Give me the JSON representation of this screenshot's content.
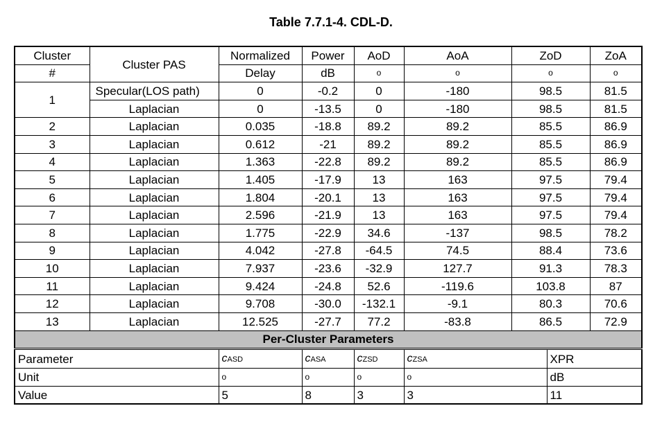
{
  "caption": "Table 7.7.1-4. CDL-D.",
  "header": {
    "cluster_top": "Cluster",
    "cluster_bottom": "#",
    "pas": "Cluster PAS",
    "delay_top": "Normalized",
    "delay_bottom": "Delay",
    "power_top": "Power",
    "power_bottom": "dB",
    "aod_top": "AoD",
    "aod_bottom": "o",
    "aoa_top": "AoA",
    "aoa_bottom": "o",
    "zod_top": "ZoD",
    "zod_bottom": "o",
    "zoa_top": "ZoA",
    "zoa_bottom": "o"
  },
  "first_cluster": {
    "cluster": "1",
    "rows": [
      {
        "pas": "Specular(LOS path)",
        "delay": "0",
        "power": "-0.2",
        "aod": "0",
        "aoa": "-180",
        "zod": "98.5",
        "zoa": "81.5"
      },
      {
        "pas": "Laplacian",
        "delay": "0",
        "power": "-13.5",
        "aod": "0",
        "aoa": "-180",
        "zod": "98.5",
        "zoa": "81.5"
      }
    ]
  },
  "rows": [
    {
      "cluster": "2",
      "pas": "Laplacian",
      "delay": "0.035",
      "power": "-18.8",
      "aod": "89.2",
      "aoa": "89.2",
      "zod": "85.5",
      "zoa": "86.9"
    },
    {
      "cluster": "3",
      "pas": "Laplacian",
      "delay": "0.612",
      "power": "-21",
      "aod": "89.2",
      "aoa": "89.2",
      "zod": "85.5",
      "zoa": "86.9"
    },
    {
      "cluster": "4",
      "pas": "Laplacian",
      "delay": "1.363",
      "power": "-22.8",
      "aod": "89.2",
      "aoa": "89.2",
      "zod": "85.5",
      "zoa": "86.9"
    },
    {
      "cluster": "5",
      "pas": "Laplacian",
      "delay": "1.405",
      "power": "-17.9",
      "aod": "13",
      "aoa": "163",
      "zod": "97.5",
      "zoa": "79.4"
    },
    {
      "cluster": "6",
      "pas": "Laplacian",
      "delay": "1.804",
      "power": "-20.1",
      "aod": "13",
      "aoa": "163",
      "zod": "97.5",
      "zoa": "79.4"
    },
    {
      "cluster": "7",
      "pas": "Laplacian",
      "delay": "2.596",
      "power": "-21.9",
      "aod": "13",
      "aoa": "163",
      "zod": "97.5",
      "zoa": "79.4"
    },
    {
      "cluster": "8",
      "pas": "Laplacian",
      "delay": "1.775",
      "power": "-22.9",
      "aod": "34.6",
      "aoa": "-137",
      "zod": "98.5",
      "zoa": "78.2"
    },
    {
      "cluster": "9",
      "pas": "Laplacian",
      "delay": "4.042",
      "power": "-27.8",
      "aod": "-64.5",
      "aoa": "74.5",
      "zod": "88.4",
      "zoa": "73.6"
    },
    {
      "cluster": "10",
      "pas": "Laplacian",
      "delay": "7.937",
      "power": "-23.6",
      "aod": "-32.9",
      "aoa": "127.7",
      "zod": "91.3",
      "zoa": "78.3"
    },
    {
      "cluster": "11",
      "pas": "Laplacian",
      "delay": "9.424",
      "power": "-24.8",
      "aod": "52.6",
      "aoa": "-119.6",
      "zod": "103.8",
      "zoa": "87"
    },
    {
      "cluster": "12",
      "pas": "Laplacian",
      "delay": "9.708",
      "power": "-30.0",
      "aod": "-132.1",
      "aoa": "-9.1",
      "zod": "80.3",
      "zoa": "70.6"
    },
    {
      "cluster": "13",
      "pas": "Laplacian",
      "delay": "12.525",
      "power": "-27.7",
      "aod": "77.2",
      "aoa": "-83.8",
      "zod": "86.5",
      "zoa": "72.9"
    }
  ],
  "per_cluster_title": "Per-Cluster Parameters",
  "params": {
    "param_row": {
      "label": "Parameter",
      "asd_sym": "c",
      "asd_sub": "ASD",
      "asa_sym": "c",
      "asa_sub": "ASA",
      "zsd_sym": "c",
      "zsd_sub": "ZSD",
      "zsa_sym": "c",
      "zsa_sub": "ZSA",
      "xpr": "XPR"
    },
    "unit_row": {
      "label": "Unit",
      "asd": "o",
      "asa": "o",
      "zsd": "o",
      "zsa": "o",
      "xpr": "dB"
    },
    "value_row": {
      "label": "Value",
      "asd": "5",
      "asa": "8",
      "zsd": "3",
      "zsa": "3",
      "xpr": "11"
    }
  }
}
